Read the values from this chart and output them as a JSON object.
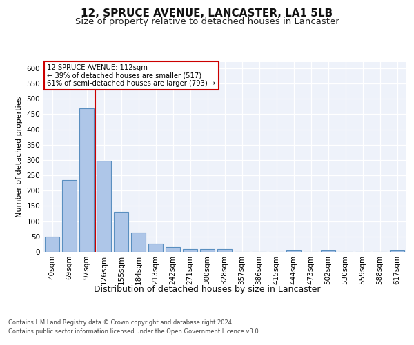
{
  "title": "12, SPRUCE AVENUE, LANCASTER, LA1 5LB",
  "subtitle": "Size of property relative to detached houses in Lancaster",
  "xlabel": "Distribution of detached houses by size in Lancaster",
  "ylabel": "Number of detached properties",
  "categories": [
    "40sqm",
    "69sqm",
    "97sqm",
    "126sqm",
    "155sqm",
    "184sqm",
    "213sqm",
    "242sqm",
    "271sqm",
    "300sqm",
    "328sqm",
    "357sqm",
    "386sqm",
    "415sqm",
    "444sqm",
    "473sqm",
    "502sqm",
    "530sqm",
    "559sqm",
    "588sqm",
    "617sqm"
  ],
  "values": [
    50,
    235,
    470,
    297,
    130,
    63,
    28,
    15,
    10,
    10,
    8,
    0,
    0,
    0,
    5,
    0,
    5,
    0,
    0,
    0,
    5
  ],
  "bar_color": "#aec6e8",
  "bar_edgecolor": "#5a8fc0",
  "bar_linewidth": 0.8,
  "annotation_line1": "12 SPRUCE AVENUE: 112sqm",
  "annotation_line2": "← 39% of detached houses are smaller (517)",
  "annotation_line3": "61% of semi-detached houses are larger (793) →",
  "annotation_box_color": "#ffffff",
  "annotation_box_edgecolor": "#cc0000",
  "vline_color": "#cc0000",
  "ylim": [
    0,
    620
  ],
  "yticks": [
    0,
    50,
    100,
    150,
    200,
    250,
    300,
    350,
    400,
    450,
    500,
    550,
    600
  ],
  "title_fontsize": 11,
  "subtitle_fontsize": 9.5,
  "xlabel_fontsize": 9,
  "ylabel_fontsize": 8,
  "tick_fontsize": 7.5,
  "footer_line1": "Contains HM Land Registry data © Crown copyright and database right 2024.",
  "footer_line2": "Contains public sector information licensed under the Open Government Licence v3.0.",
  "plot_bg_color": "#eef2fa"
}
